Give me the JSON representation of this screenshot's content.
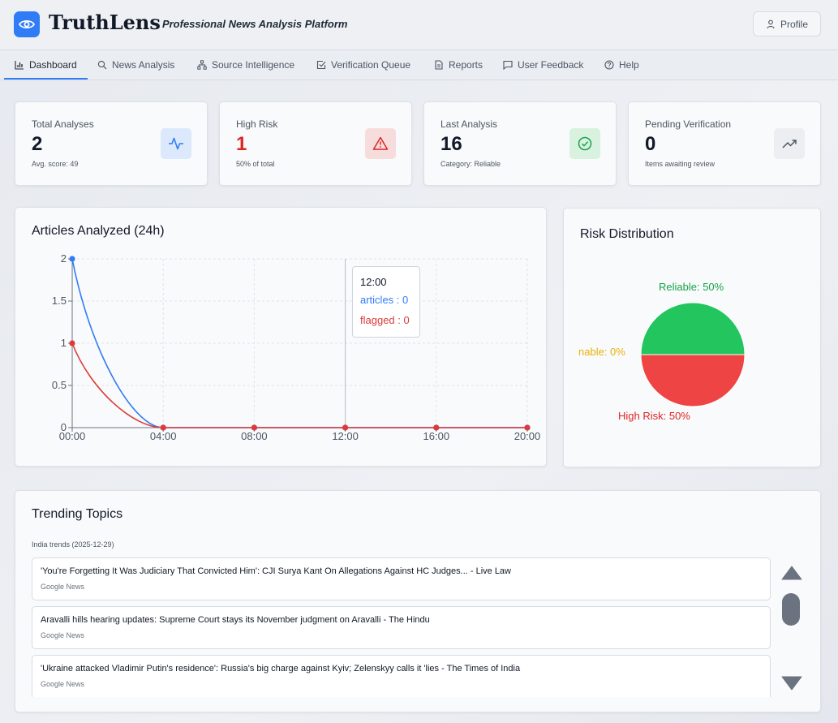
{
  "header": {
    "brand": "TruthLens",
    "tagline": "- Professional News Analysis Platform",
    "profile_label": "Profile"
  },
  "nav": {
    "items": [
      {
        "label": "Dashboard",
        "icon": "bar-chart-icon"
      },
      {
        "label": "News Analysis",
        "icon": "search-icon"
      },
      {
        "label": "Source Intelligence",
        "icon": "network-icon"
      },
      {
        "label": "Verification Queue",
        "icon": "check-square-icon"
      },
      {
        "label": "Reports",
        "icon": "file-text-icon"
      },
      {
        "label": "User Feedback",
        "icon": "message-square-icon"
      },
      {
        "label": "Help",
        "icon": "help-circle-icon"
      }
    ],
    "active": "Dashboard"
  },
  "stats": [
    {
      "label": "Total Analyses",
      "value": "2",
      "sub": "Avg. score: 49",
      "icon": "activity-icon",
      "color": "#2f7cf6"
    },
    {
      "label": "High Risk",
      "value": "1",
      "sub": "50% of total",
      "icon": "alert-triangle-icon",
      "color": "#dc2626"
    },
    {
      "label": "Last Analysis",
      "value": "16",
      "sub": "Category: Reliable",
      "icon": "check-circle-icon",
      "color": "#16a34a"
    },
    {
      "label": "Pending Verification",
      "value": "0",
      "sub": "Items awaiting review",
      "icon": "trending-up-icon",
      "color": "#4b5563"
    }
  ],
  "line_chart": {
    "title": "Articles Analyzed (24h)",
    "tooltip": {
      "time": "12:00",
      "articles_label": "articles : 0",
      "flagged_label": "flagged : 0"
    }
  },
  "pie_chart": {
    "title": "Risk Distribution",
    "labels": {
      "reliable": "Reliable: 50%",
      "questionable": "nable: 0%",
      "high_risk": "High Risk: 50%"
    }
  },
  "trending": {
    "title": "Trending Topics",
    "subtitle": "India trends (2025-12-29)",
    "items": [
      {
        "title": "'You're Forgetting It Was Judiciary That Convicted Him': CJI Surya Kant On Allegations Against HC Judges... - Live Law",
        "source": "Google News"
      },
      {
        "title": "Aravalli hills hearing updates: Supreme Court stays its November judgment on Aravalli - The Hindu",
        "source": "Google News"
      },
      {
        "title": "'Ukraine attacked Vladimir Putin's residence': Russia's big charge against Kyiv; Zelenskyy calls it 'lies - The Times of India",
        "source": "Google News"
      }
    ]
  },
  "chart_data": [
    {
      "type": "line",
      "title": "Articles Analyzed (24h)",
      "x": [
        "00:00",
        "04:00",
        "08:00",
        "12:00",
        "16:00",
        "20:00"
      ],
      "series": [
        {
          "name": "articles",
          "values": [
            2,
            0,
            0,
            0,
            0,
            0
          ],
          "color": "#2f7cf6"
        },
        {
          "name": "flagged",
          "values": [
            1,
            0,
            0,
            0,
            0,
            0
          ],
          "color": "#dc3b3b"
        }
      ],
      "yticks": [
        "0",
        "0.5",
        "1",
        "1.5",
        "2"
      ],
      "ylim": [
        0,
        2
      ],
      "grid": true
    },
    {
      "type": "pie",
      "title": "Risk Distribution",
      "slices": [
        {
          "label": "Reliable",
          "value": 50,
          "color": "#22c55e"
        },
        {
          "label": "Questionable",
          "value": 0,
          "color": "#eab308"
        },
        {
          "label": "High Risk",
          "value": 50,
          "color": "#ef4444"
        }
      ]
    }
  ]
}
